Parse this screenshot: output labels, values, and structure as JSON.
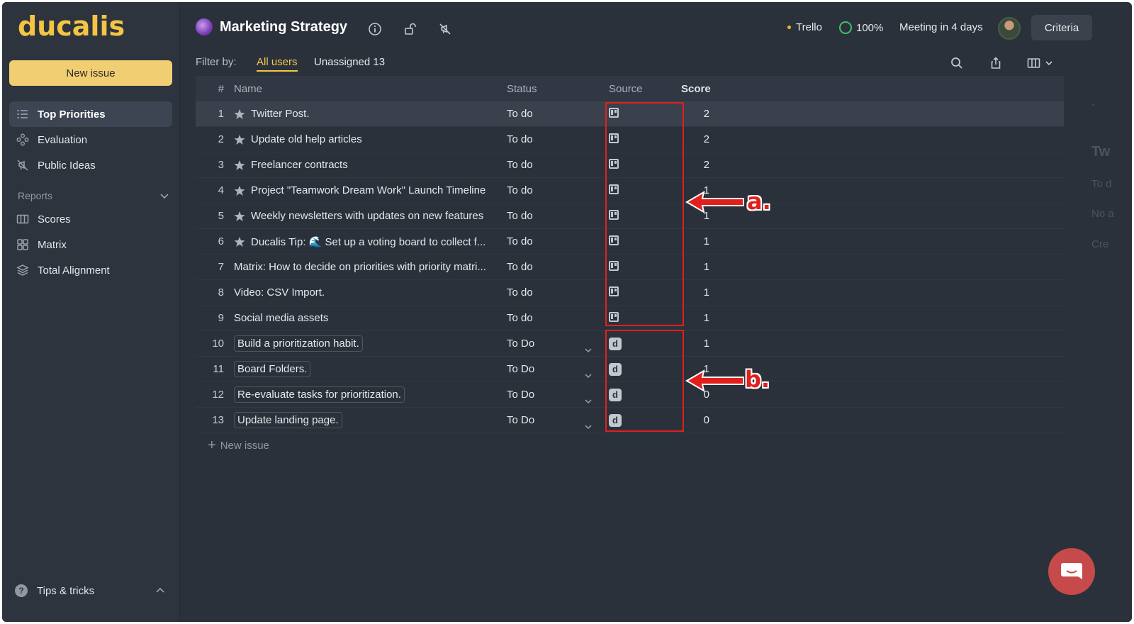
{
  "app": {
    "logo": "ducalis"
  },
  "sidebar": {
    "new_issue_label": "New issue",
    "items": [
      {
        "label": "Top Priorities",
        "icon": "list-icon",
        "active": true
      },
      {
        "label": "Evaluation",
        "icon": "nodes-icon",
        "active": false
      },
      {
        "label": "Public Ideas",
        "icon": "megaphone-off-icon",
        "active": false
      }
    ],
    "reports_label": "Reports",
    "report_items": [
      {
        "label": "Scores",
        "icon": "columns-icon"
      },
      {
        "label": "Matrix",
        "icon": "grid-icon"
      },
      {
        "label": "Total Alignment",
        "icon": "layers-icon"
      }
    ],
    "tips_label": "Tips & tricks"
  },
  "header": {
    "board_title": "Marketing Strategy",
    "integration": "Trello",
    "progress": "100%",
    "meeting": "Meeting in 4 days",
    "criteria_label": "Criteria"
  },
  "filter": {
    "label": "Filter by:",
    "all_users": "All users",
    "unassigned": "Unassigned 13"
  },
  "table": {
    "headers": {
      "num": "#",
      "name": "Name",
      "status": "Status",
      "source": "Source",
      "score": "Score"
    },
    "rows": [
      {
        "num": "1",
        "name": "Twitter Post.",
        "status": "To do",
        "source": "trello",
        "score": "2",
        "starred": true,
        "dropdown": false
      },
      {
        "num": "2",
        "name": "Update old help articles",
        "status": "To do",
        "source": "trello",
        "score": "2",
        "starred": true,
        "dropdown": false
      },
      {
        "num": "3",
        "name": "Freelancer contracts",
        "status": "To do",
        "source": "trello",
        "score": "2",
        "starred": true,
        "dropdown": false
      },
      {
        "num": "4",
        "name": "Project \"Teamwork Dream Work\" Launch Timeline",
        "status": "To do",
        "source": "trello",
        "score": "1",
        "starred": true,
        "dropdown": false
      },
      {
        "num": "5",
        "name": "Weekly newsletters with updates on new features",
        "status": "To do",
        "source": "trello",
        "score": "1",
        "starred": true,
        "dropdown": false
      },
      {
        "num": "6",
        "name": "Ducalis Tip: 🌊 Set up a voting board to collect f...",
        "status": "To do",
        "source": "trello",
        "score": "1",
        "starred": true,
        "dropdown": false
      },
      {
        "num": "7",
        "name": "Matrix: How to decide on priorities with priority matri...",
        "status": "To do",
        "source": "trello",
        "score": "1",
        "starred": false,
        "dropdown": false
      },
      {
        "num": "8",
        "name": "Video: CSV Import.",
        "status": "To do",
        "source": "trello",
        "score": "1",
        "starred": false,
        "dropdown": false
      },
      {
        "num": "9",
        "name": "Social media assets",
        "status": "To do",
        "source": "trello",
        "score": "1",
        "starred": false,
        "dropdown": false
      },
      {
        "num": "10",
        "name": "Build a prioritization habit.",
        "status": "To Do",
        "source": "ducalis",
        "score": "1",
        "starred": false,
        "dropdown": true
      },
      {
        "num": "11",
        "name": "Board Folders.",
        "status": "To Do",
        "source": "ducalis",
        "score": "1",
        "starred": false,
        "dropdown": true
      },
      {
        "num": "12",
        "name": "Re-evaluate tasks for prioritization.",
        "status": "To Do",
        "source": "ducalis",
        "score": "0",
        "starred": false,
        "dropdown": true
      },
      {
        "num": "13",
        "name": "Update landing page.",
        "status": "To Do",
        "source": "ducalis",
        "score": "0",
        "starred": false,
        "dropdown": true
      }
    ],
    "new_issue_label": "New issue"
  },
  "side_pane": {
    "dash": "-",
    "title": "Tw",
    "line1": "To d",
    "line2": "No a",
    "line3": "Cre"
  },
  "annotations": {
    "a": "a.",
    "b": "b."
  },
  "colors": {
    "accent": "#f2c84a",
    "annotation": "#e0201d",
    "background": "#2b313b"
  }
}
